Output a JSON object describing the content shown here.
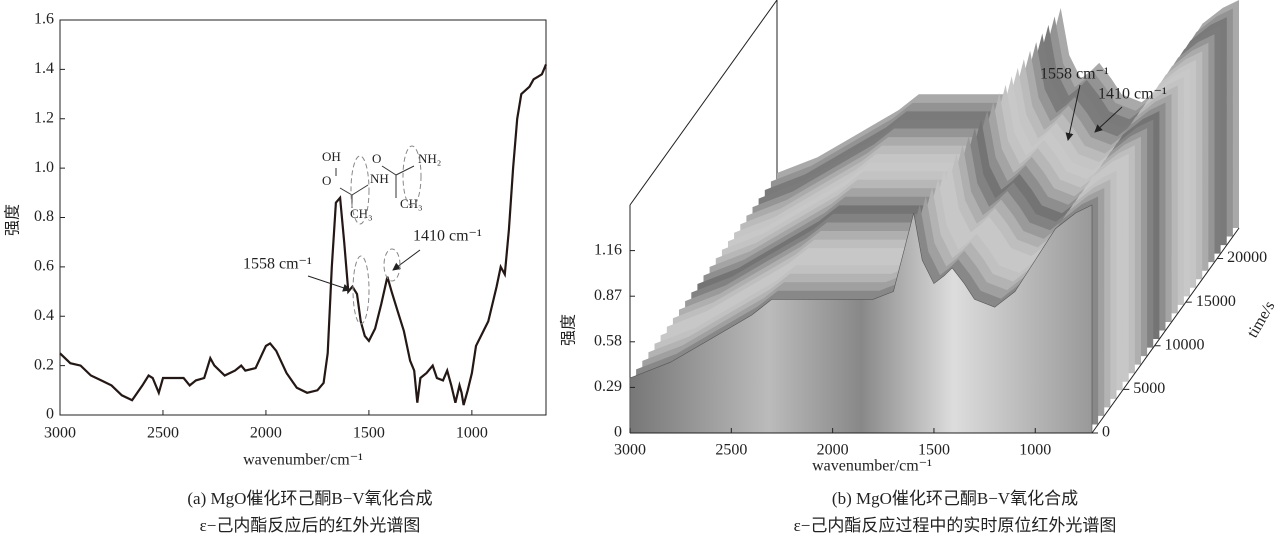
{
  "chart_data": [
    {
      "type": "line",
      "x_label": "wavenumber/cm⁻¹",
      "y_label": "强度",
      "caption": [
        "(a) MgO催化环己酮B−V氧化合成",
        "ε−己内酯反应后的红外光谱图"
      ],
      "annotations": [
        "1558 cm⁻¹",
        "1410 cm⁻¹"
      ],
      "structure_labels": [
        "OH",
        "O",
        "NH",
        "CH₃",
        "O",
        "NH₂",
        "CH₃"
      ],
      "color": "#231815",
      "xlim": [
        3000,
        640
      ],
      "xticks": [
        3000,
        2500,
        2000,
        1500,
        1000
      ],
      "ylim": [
        0,
        1.6
      ],
      "yticks": [
        0,
        0.2,
        0.4,
        0.6,
        0.8,
        {
          "value": 1,
          "label": "1.0"
        },
        1.2,
        1.4,
        1.6
      ],
      "x": [
        3000,
        2950,
        2900,
        2850,
        2800,
        2750,
        2700,
        2650,
        2600,
        2570,
        2550,
        2520,
        2500,
        2450,
        2400,
        2370,
        2340,
        2300,
        2270,
        2250,
        2200,
        2150,
        2120,
        2100,
        2050,
        2000,
        1980,
        1950,
        1900,
        1850,
        1800,
        1750,
        1720,
        1700,
        1680,
        1660,
        1640,
        1620,
        1600,
        1580,
        1558,
        1540,
        1520,
        1500,
        1470,
        1440,
        1410,
        1390,
        1360,
        1330,
        1300,
        1280,
        1265,
        1250,
        1220,
        1190,
        1170,
        1140,
        1120,
        1100,
        1080,
        1060,
        1050,
        1040,
        1020,
        1000,
        980,
        950,
        920,
        880,
        860,
        840,
        820,
        800,
        780,
        760,
        720,
        700,
        680,
        660,
        640
      ],
      "values": [
        0.25,
        0.21,
        0.2,
        0.16,
        0.14,
        0.12,
        0.08,
        0.06,
        0.12,
        0.16,
        0.15,
        0.09,
        0.15,
        0.15,
        0.15,
        0.12,
        0.14,
        0.15,
        0.23,
        0.2,
        0.16,
        0.18,
        0.2,
        0.18,
        0.19,
        0.28,
        0.29,
        0.26,
        0.17,
        0.11,
        0.09,
        0.1,
        0.13,
        0.25,
        0.6,
        0.86,
        0.88,
        0.7,
        0.5,
        0.52,
        0.49,
        0.38,
        0.32,
        0.3,
        0.35,
        0.45,
        0.56,
        0.5,
        0.42,
        0.34,
        0.22,
        0.18,
        0.05,
        0.15,
        0.17,
        0.2,
        0.15,
        0.14,
        0.18,
        0.12,
        0.05,
        0.12,
        0.09,
        0.04,
        0.1,
        0.17,
        0.28,
        0.33,
        0.38,
        0.52,
        0.6,
        0.57,
        0.75,
        1.0,
        1.2,
        1.3,
        1.33,
        1.36,
        1.37,
        1.38,
        1.42
      ]
    },
    {
      "type": "surface",
      "x_label": "wavenumber/cm⁻¹",
      "y_label": "强度",
      "z_label": "time/s",
      "caption": [
        "(b) MgO催化环己酮B−V氧化合成",
        "ε−己内酯反应过程中的实时原位红外光谱图"
      ],
      "annotations": [
        "1558 cm⁻¹",
        "1410 cm⁻¹"
      ],
      "xlim": [
        3000,
        720
      ],
      "xticks": [
        3000,
        2500,
        2000,
        1500,
        1000
      ],
      "ylim": [
        0,
        1.45
      ],
      "yticks": [
        0,
        0.29,
        0.58,
        0.87,
        1.16
      ],
      "zlim": [
        0,
        23500
      ],
      "zticks": [
        0,
        5000,
        10000,
        15000,
        20000
      ],
      "x": [
        3000,
        2800,
        2600,
        2400,
        2300,
        2200,
        2000,
        1800,
        1700,
        1640,
        1600,
        1558,
        1500,
        1450,
        1410,
        1350,
        1300,
        1200,
        1100,
        1000,
        900,
        800,
        720
      ],
      "values": [
        0.35,
        0.45,
        0.6,
        0.75,
        0.85,
        0.85,
        0.85,
        0.85,
        0.9,
        1.2,
        1.4,
        1.1,
        0.95,
        1.0,
        1.05,
        0.95,
        0.85,
        0.8,
        0.9,
        1.1,
        1.3,
        1.4,
        1.45
      ]
    }
  ]
}
